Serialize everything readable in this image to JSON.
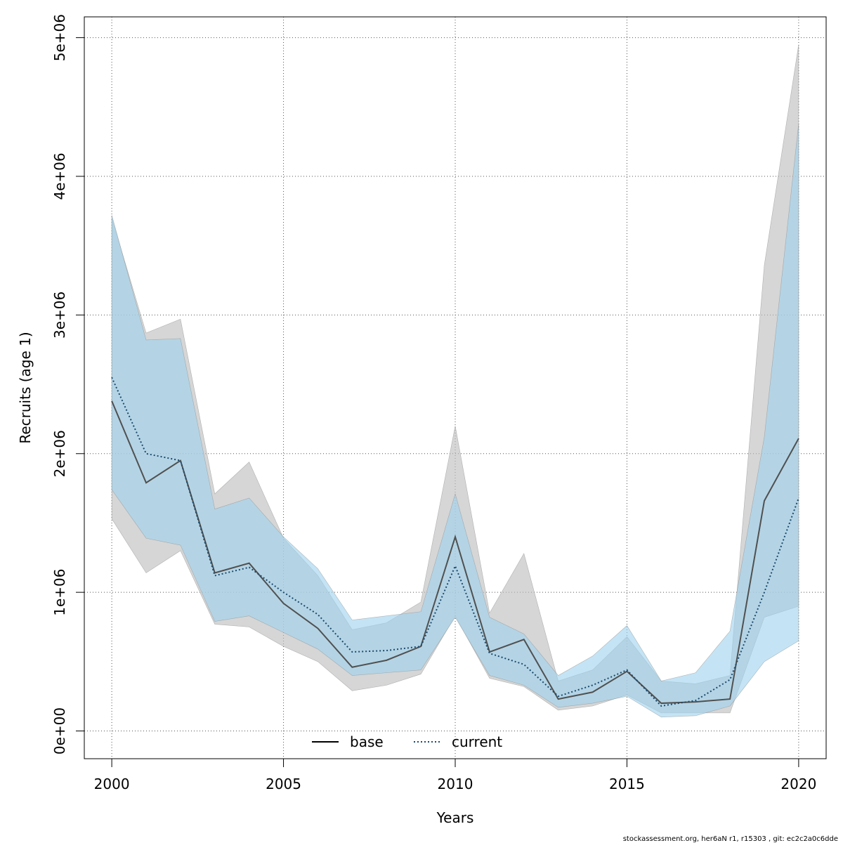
{
  "chart_data": {
    "type": "line",
    "xlabel": "Years",
    "ylabel": "Recruits (age 1)",
    "xlim": [
      1999.2,
      2020.8
    ],
    "ylim": [
      -200000,
      5150000
    ],
    "x_ticks": [
      2000,
      2005,
      2010,
      2015,
      2020
    ],
    "x_tick_labels": [
      "2000",
      "2005",
      "2010",
      "2015",
      "2020"
    ],
    "y_ticks": [
      0,
      1000000,
      2000000,
      3000000,
      4000000,
      5000000
    ],
    "y_tick_labels": [
      "0e+00",
      "1e+06",
      "2e+06",
      "3e+06",
      "4e+06",
      "5e+06"
    ],
    "grid": true,
    "legend_position": "bottom-center",
    "x": [
      2000,
      2001,
      2002,
      2003,
      2004,
      2005,
      2006,
      2007,
      2008,
      2009,
      2010,
      2011,
      2012,
      2013,
      2014,
      2015,
      2016,
      2017,
      2018,
      2019,
      2020
    ],
    "series": [
      {
        "name": "base",
        "line_color": "#505050",
        "band_color": "#bdbdbd",
        "line_style": "solid",
        "values": [
          2380000,
          1790000,
          1950000,
          1140000,
          1210000,
          920000,
          740000,
          460000,
          510000,
          610000,
          1400000,
          570000,
          660000,
          230000,
          280000,
          430000,
          200000,
          210000,
          230000,
          1660000,
          2110000
        ],
        "lower": [
          1530000,
          1140000,
          1300000,
          770000,
          750000,
          610000,
          500000,
          290000,
          330000,
          410000,
          830000,
          380000,
          320000,
          150000,
          180000,
          260000,
          130000,
          130000,
          130000,
          820000,
          900000
        ],
        "upper": [
          3700000,
          2870000,
          2970000,
          1710000,
          1940000,
          1390000,
          1120000,
          730000,
          780000,
          930000,
          2200000,
          850000,
          1280000,
          360000,
          440000,
          680000,
          360000,
          340000,
          400000,
          3360000,
          4950000
        ]
      },
      {
        "name": "current",
        "line_color": "#1b4a6e",
        "band_color": "#9fd4ef",
        "line_style": "dotted",
        "values": [
          2550000,
          2000000,
          1950000,
          1120000,
          1180000,
          1000000,
          840000,
          570000,
          580000,
          610000,
          1190000,
          560000,
          480000,
          250000,
          330000,
          440000,
          180000,
          220000,
          370000,
          1000000,
          1680000
        ],
        "lower": [
          1740000,
          1390000,
          1340000,
          790000,
          830000,
          710000,
          590000,
          400000,
          420000,
          440000,
          820000,
          400000,
          330000,
          170000,
          200000,
          250000,
          100000,
          110000,
          180000,
          500000,
          650000
        ],
        "upper": [
          3720000,
          2820000,
          2830000,
          1600000,
          1680000,
          1400000,
          1170000,
          800000,
          830000,
          860000,
          1710000,
          820000,
          700000,
          400000,
          540000,
          760000,
          360000,
          420000,
          720000,
          2120000,
          4380000
        ]
      }
    ]
  },
  "footer": {
    "text": "stockassessment.org, her6aN  r1, r15303 , git: ec2c2a0c6dde"
  }
}
